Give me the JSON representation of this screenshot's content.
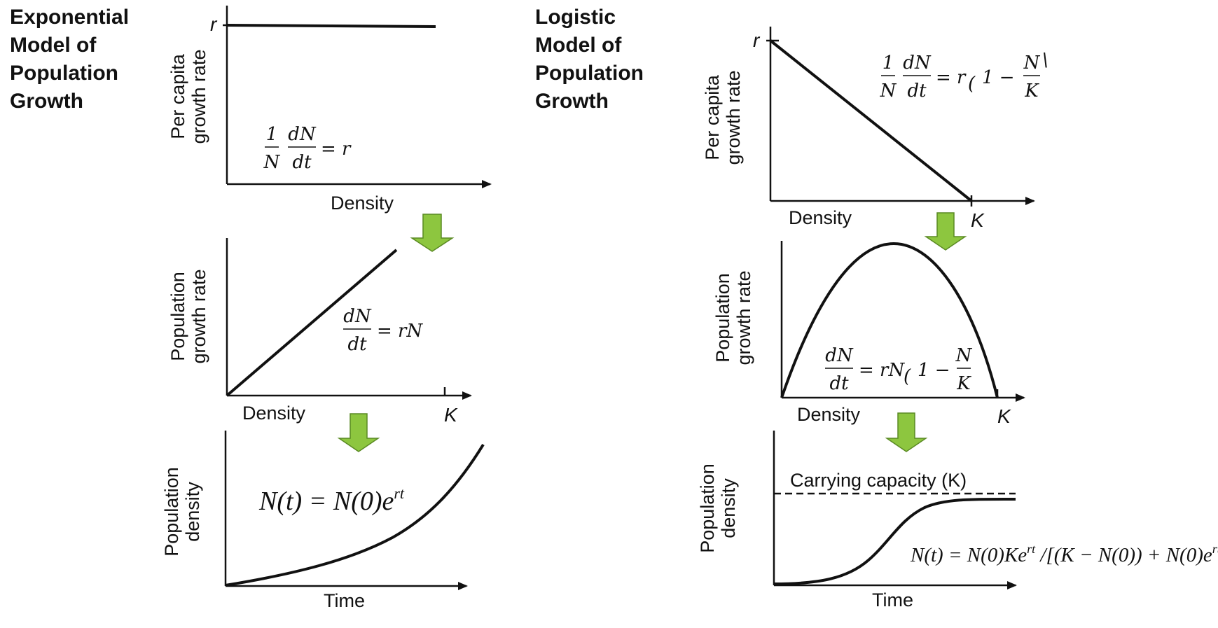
{
  "exponential": {
    "title_lines": [
      "Exponential",
      "Model of",
      "Population",
      "Growth"
    ],
    "panel1": {
      "ylabel_lines": [
        "Per capita",
        "growth rate"
      ],
      "xlabel": "Density",
      "tick_r": "r",
      "equation": {
        "num1": "1",
        "den1": "N",
        "num2": "dN",
        "den2": "dt",
        "rhs": "= r"
      }
    },
    "panel2": {
      "ylabel_lines": [
        "Population",
        "growth rate"
      ],
      "xlabel": "Density",
      "tick_K": "K",
      "equation": {
        "num": "dN",
        "den": "dt",
        "rhs": "= rN"
      }
    },
    "panel3": {
      "ylabel_lines": [
        "Population",
        "density"
      ],
      "xlabel": "Time",
      "equation": "N(t) = N(0)e",
      "equation_sup": "rt"
    }
  },
  "logistic": {
    "title_lines": [
      "Logistic",
      "Model of",
      "Population",
      "Growth"
    ],
    "panel1": {
      "ylabel_lines": [
        "Per capita",
        "growth rate"
      ],
      "xlabel": "Density",
      "tick_r": "r",
      "tick_K": "K",
      "equation": {
        "num1": "1",
        "den1": "N",
        "num2": "dN",
        "den2": "dt",
        "rhs": "= r",
        "paren": "(",
        "inner": "1 −",
        "num3": "N",
        "den3": "K",
        "close": "\\"
      }
    },
    "panel2": {
      "ylabel_lines": [
        "Population",
        "growth rate"
      ],
      "xlabel": "Density",
      "tick_K": "K",
      "equation": {
        "num": "dN",
        "den": "dt",
        "rhs": "= rN",
        "paren": "(",
        "inner": "1 −",
        "num3": "N",
        "den3": "K"
      }
    },
    "panel3": {
      "ylabel_lines": [
        "Population",
        "density"
      ],
      "xlabel": "Time",
      "capacity_label": "Carrying capacity (K)",
      "equation_parts": [
        "N(t) = N(0)Ke",
        "rt",
        " /[(K − N(0)) + N(0)e",
        "rt",
        "]"
      ]
    }
  },
  "colors": {
    "arrow_fill": "#8dc63f",
    "arrow_stroke": "#5a8a23",
    "ink": "#111111"
  }
}
